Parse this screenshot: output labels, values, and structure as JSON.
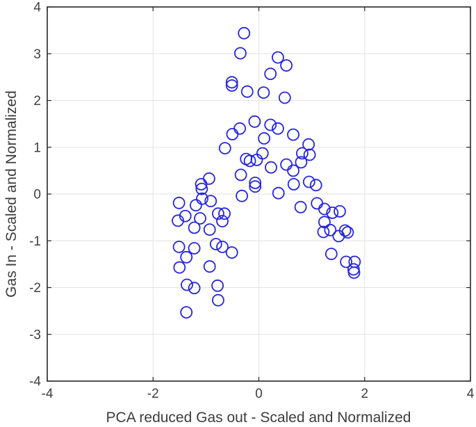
{
  "figure": {
    "background_color": "#ffffff",
    "frame_color": "#262626",
    "grid_color": "#e2e2e2",
    "tick_label_color": "#3f3f3f",
    "axis_label_color": "#3c3c3c"
  },
  "chart_data": {
    "type": "scatter",
    "title": "",
    "xlabel": "PCA reduced Gas out - Scaled and Normalized",
    "ylabel": "Gas In - Scaled and Normalized",
    "xlim": [
      -4,
      4
    ],
    "ylim": [
      -4,
      4
    ],
    "xticks": [
      -4,
      -2,
      0,
      2,
      4
    ],
    "yticks": [
      -4,
      -3,
      -2,
      -1,
      0,
      1,
      2,
      3,
      4
    ],
    "grid": true,
    "legend": "none",
    "marker": {
      "shape": "open-circle",
      "color": "#2525e0",
      "radius_px": 8,
      "stroke_px": 1.8
    },
    "points": [
      [
        -0.28,
        3.44
      ],
      [
        -0.35,
        3.01
      ],
      [
        0.36,
        2.92
      ],
      [
        0.52,
        2.75
      ],
      [
        0.22,
        2.57
      ],
      [
        -0.51,
        2.39
      ],
      [
        -0.51,
        2.32
      ],
      [
        -0.22,
        2.19
      ],
      [
        0.09,
        2.17
      ],
      [
        0.49,
        2.06
      ],
      [
        -0.08,
        1.55
      ],
      [
        0.22,
        1.48
      ],
      [
        -0.36,
        1.4
      ],
      [
        0.36,
        1.4
      ],
      [
        -0.5,
        1.28
      ],
      [
        0.65,
        1.27
      ],
      [
        0.1,
        1.19
      ],
      [
        0.94,
        1.06
      ],
      [
        -0.64,
        0.98
      ],
      [
        0.07,
        0.87
      ],
      [
        0.82,
        0.87
      ],
      [
        0.96,
        0.84
      ],
      [
        -0.24,
        0.75
      ],
      [
        -0.17,
        0.71
      ],
      [
        -0.04,
        0.73
      ],
      [
        0.8,
        0.68
      ],
      [
        0.52,
        0.63
      ],
      [
        0.23,
        0.57
      ],
      [
        0.65,
        0.5
      ],
      [
        -0.34,
        0.41
      ],
      [
        -0.94,
        0.33
      ],
      [
        -0.07,
        0.24
      ],
      [
        -0.07,
        0.16
      ],
      [
        0.66,
        0.21
      ],
      [
        0.95,
        0.26
      ],
      [
        1.08,
        0.19
      ],
      [
        -1.09,
        0.21
      ],
      [
        -1.08,
        0.11
      ],
      [
        0.37,
        0.02
      ],
      [
        -0.32,
        -0.04
      ],
      [
        -1.51,
        -0.19
      ],
      [
        -1.19,
        -0.24
      ],
      [
        -1.07,
        -0.1
      ],
      [
        -0.91,
        -0.15
      ],
      [
        -1.39,
        -0.47
      ],
      [
        -1.53,
        -0.57
      ],
      [
        -1.11,
        -0.52
      ],
      [
        -1.22,
        -0.72
      ],
      [
        -0.93,
        -0.76
      ],
      [
        -0.77,
        -0.42
      ],
      [
        -0.65,
        -0.42
      ],
      [
        -0.69,
        -0.58
      ],
      [
        0.79,
        -0.28
      ],
      [
        1.1,
        -0.2
      ],
      [
        1.24,
        -0.32
      ],
      [
        1.39,
        -0.4
      ],
      [
        1.53,
        -0.37
      ],
      [
        1.24,
        -0.6
      ],
      [
        1.22,
        -0.81
      ],
      [
        1.35,
        -0.77
      ],
      [
        1.51,
        -0.9
      ],
      [
        1.63,
        -0.78
      ],
      [
        1.68,
        -0.82
      ],
      [
        1.37,
        -1.28
      ],
      [
        1.65,
        -1.45
      ],
      [
        1.81,
        -1.45
      ],
      [
        1.79,
        -1.61
      ],
      [
        1.8,
        -1.68
      ],
      [
        -1.51,
        -1.13
      ],
      [
        -1.22,
        -1.16
      ],
      [
        -0.81,
        -1.07
      ],
      [
        -0.69,
        -1.13
      ],
      [
        -0.51,
        -1.25
      ],
      [
        -1.37,
        -1.35
      ],
      [
        -1.5,
        -1.57
      ],
      [
        -0.93,
        -1.55
      ],
      [
        -1.36,
        -1.94
      ],
      [
        -1.22,
        -2.01
      ],
      [
        -0.78,
        -1.96
      ],
      [
        -0.77,
        -2.27
      ],
      [
        -1.37,
        -2.53
      ]
    ]
  }
}
